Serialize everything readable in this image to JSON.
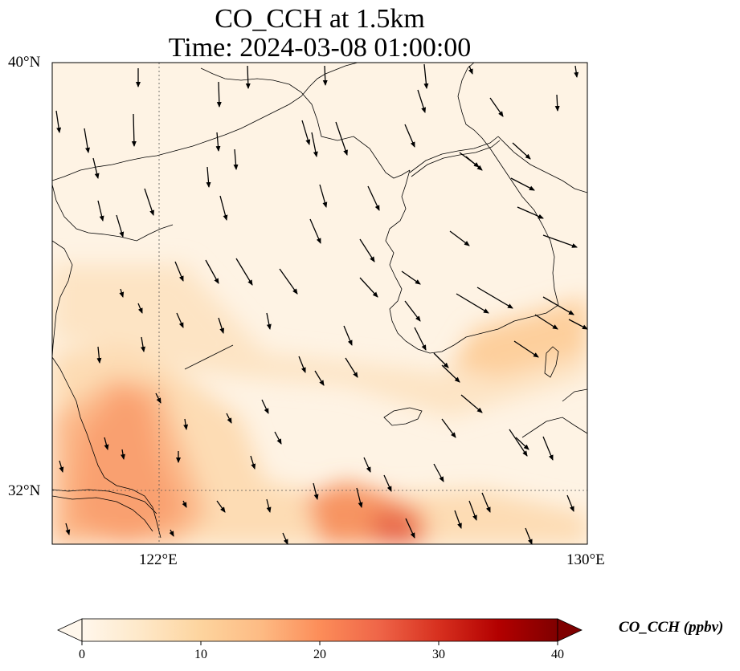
{
  "title": {
    "line1": "CO_CCH at 1.5km",
    "line2": "Time: 2024-03-08 01:00:00"
  },
  "axes": {
    "lat_labels": [
      "40°N",
      "32°N"
    ],
    "lon_labels": [
      "122°E",
      "130°E"
    ]
  },
  "colorbar": {
    "label": "CO_CCH (ppbv)",
    "ticks": [
      "0",
      "10",
      "20",
      "30",
      "40"
    ],
    "range": [
      0,
      40
    ],
    "extend": "both",
    "colormap": "OrRd",
    "colors": [
      "#fff7ec",
      "#fee8c8",
      "#fdd49e",
      "#fdbb84",
      "#fc8d59",
      "#ef6548",
      "#d7301f",
      "#b30000",
      "#7f0000"
    ]
  },
  "map": {
    "field": "CO_CCH",
    "level": "1.5km",
    "lon_range": [
      120,
      130
    ],
    "lat_range": [
      31,
      40
    ],
    "gridlines": true,
    "gridline_lon": 122,
    "gridline_lat": 32,
    "wind_vectors": true
  }
}
